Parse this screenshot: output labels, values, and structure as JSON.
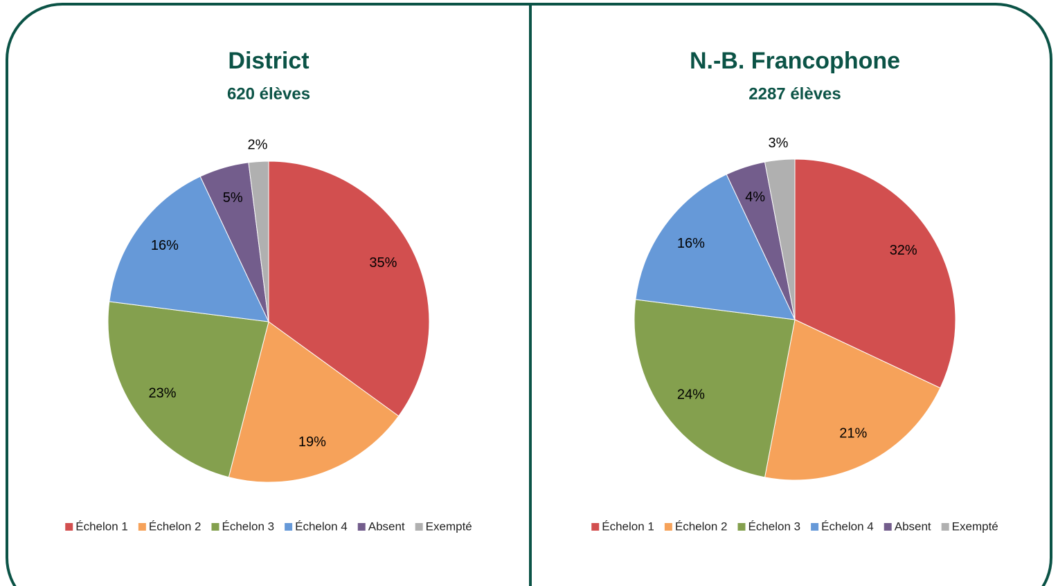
{
  "chart_data": [
    {
      "type": "pie",
      "title": "District",
      "subtitle": "620 élèves",
      "categories": [
        "Échelon 1",
        "Échelon 2",
        "Échelon 3",
        "Échelon 4",
        "Absent",
        "Exempté"
      ],
      "values": [
        35,
        19,
        23,
        16,
        5,
        2
      ],
      "value_labels": [
        "35%",
        "19%",
        "23%",
        "16%",
        "5%",
        "2%"
      ],
      "colors": [
        "#d24f4f",
        "#f6a25a",
        "#84a04e",
        "#6699d8",
        "#735d8c",
        "#b0b0b0"
      ],
      "legend": "bottom"
    },
    {
      "type": "pie",
      "title": "N.-B. Francophone",
      "subtitle": "2287 élèves",
      "categories": [
        "Échelon 1",
        "Échelon 2",
        "Échelon 3",
        "Échelon 4",
        "Absent",
        "Exempté"
      ],
      "values": [
        32,
        21,
        24,
        16,
        4,
        3
      ],
      "value_labels": [
        "32%",
        "21%",
        "24%",
        "16%",
        "4%",
        "3%"
      ],
      "colors": [
        "#d24f4f",
        "#f6a25a",
        "#84a04e",
        "#6699d8",
        "#735d8c",
        "#b0b0b0"
      ],
      "legend": "bottom"
    }
  ]
}
